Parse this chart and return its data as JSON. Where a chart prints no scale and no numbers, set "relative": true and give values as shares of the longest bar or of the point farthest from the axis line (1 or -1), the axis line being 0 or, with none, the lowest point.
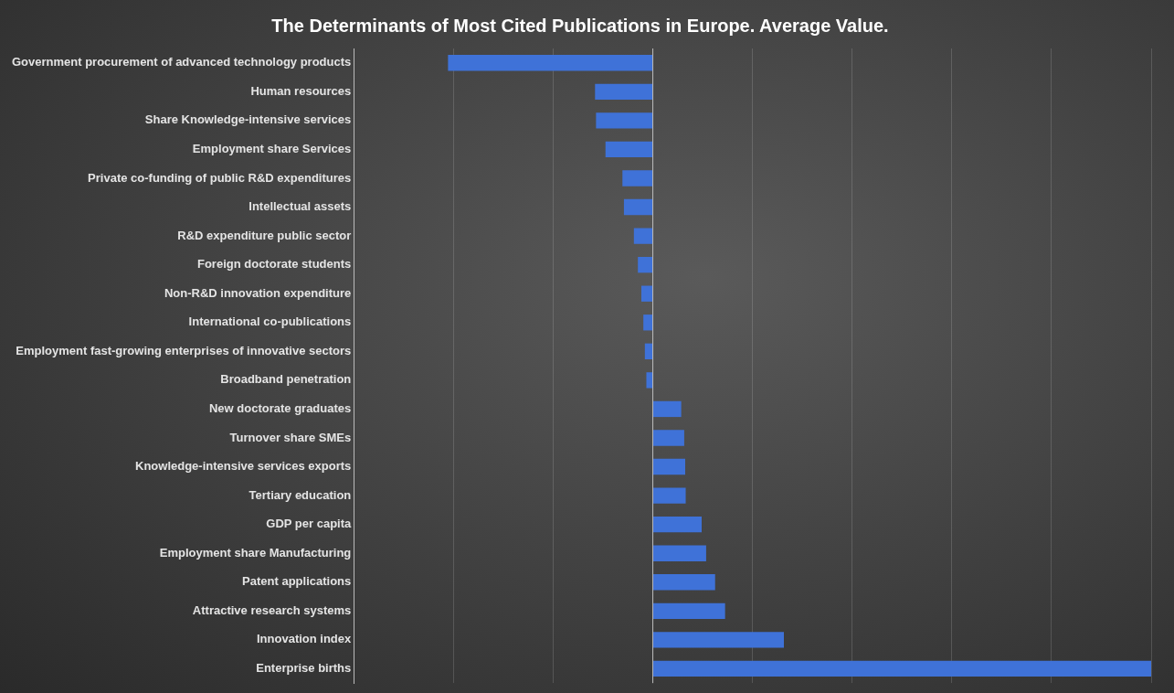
{
  "chart_data": {
    "type": "bar",
    "orientation": "horizontal",
    "relative": true,
    "title": "The Determinants of Most Cited Publications in Europe. Average Value.",
    "categories": [
      "Government procurement of advanced technology products",
      "Human resources",
      "Share Knowledge-intensive services",
      "Employment share Services",
      "Private co-funding of public R&D expenditures",
      "Intellectual assets",
      "R&D expenditure public sector",
      "Foreign doctorate students",
      "Non-R&D innovation expenditure",
      "International co-publications",
      "Employment fast-growing enterprises of innovative sectors",
      "Broadband penetration",
      "New doctorate graduates",
      "Turnover share SMEs",
      "Knowledge-intensive services exports",
      "Tertiary education",
      "GDP per capita",
      "Employment share Manufacturing",
      "Patent applications",
      "Attractive research systems",
      "Innovation index",
      "Enterprise births"
    ],
    "values": [
      -0.411,
      -0.116,
      -0.114,
      -0.095,
      -0.061,
      -0.058,
      -0.038,
      -0.03,
      -0.023,
      -0.019,
      -0.016,
      -0.013,
      0.057,
      0.063,
      0.065,
      0.066,
      0.098,
      0.107,
      0.125,
      0.145,
      0.263,
      1
    ],
    "color": "#3f72d8",
    "grid": "x",
    "legend": false
  }
}
